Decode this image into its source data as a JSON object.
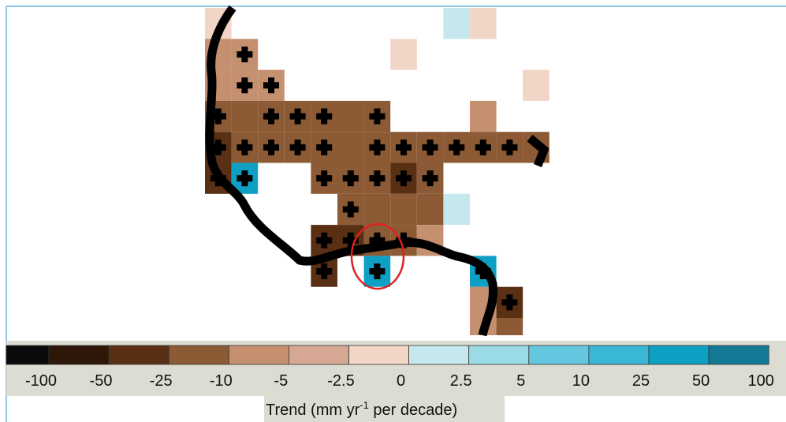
{
  "colorbar": {
    "colors": [
      "#0a0a0a",
      "#2e1708",
      "#5a3015",
      "#8c5a34",
      "#c4906f",
      "#d6a893",
      "#f1d5c6",
      "#c4e8ee",
      "#9adbe6",
      "#64c6df",
      "#3ab6d6",
      "#0ea0c4",
      "#137995"
    ],
    "labels": [
      "-100",
      "-50",
      "-25",
      "-10",
      "-5",
      "-2.5",
      "0",
      "2.5",
      "5",
      "10",
      "25",
      "50",
      "100"
    ],
    "title": {
      "text": "Trend (mm yr",
      "sup": "-1",
      "rest": " per decade)"
    }
  }
}
